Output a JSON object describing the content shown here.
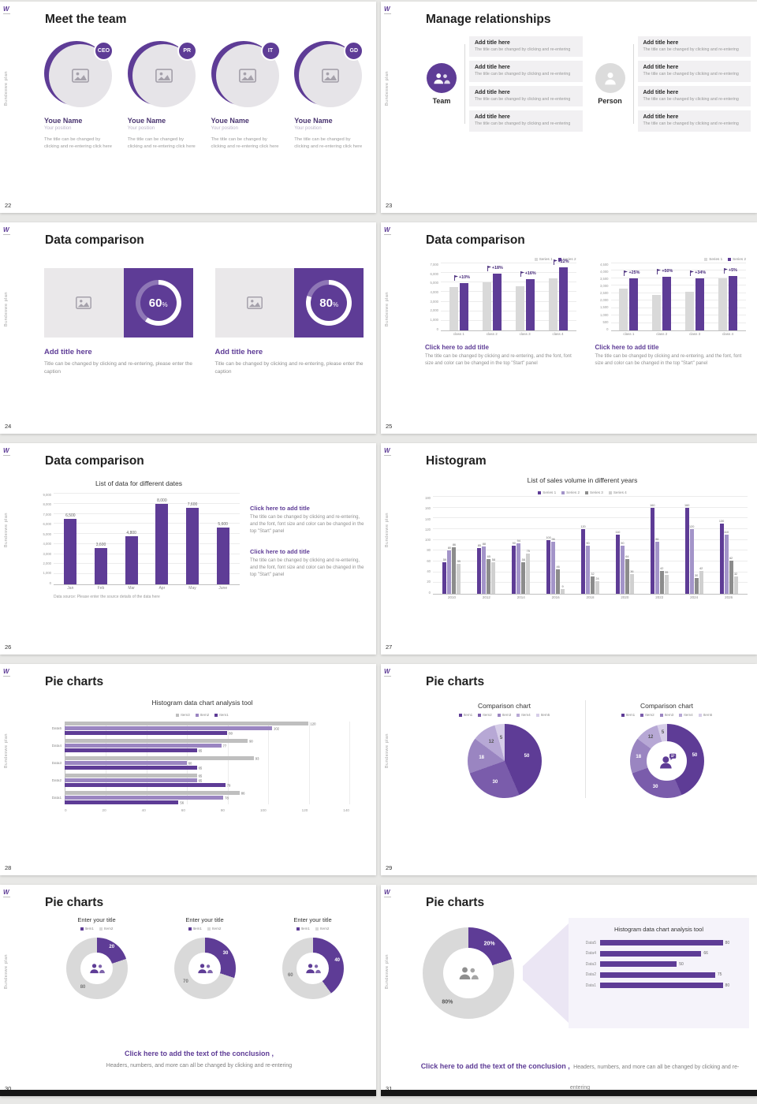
{
  "canvas": {
    "background": "#e8e8e6"
  },
  "colors": {
    "accent": "#5e3c96",
    "accent_dark": "#46297a",
    "purple_shades": [
      "#5e3c96",
      "#7a5cab",
      "#9a85c1",
      "#b7a8d5",
      "#d6cde8"
    ],
    "bar_gray": "#d9d9d9",
    "panel_gray": "#f1f0f2",
    "footer_bar": "#161616"
  },
  "brand": {
    "logo_text": "W",
    "sidebar_text": "Bundeswe plan"
  },
  "slides": [
    {
      "number": "22",
      "title": "Meet the team",
      "members": [
        {
          "badge": "CEO",
          "name": "Youe Name",
          "position": "Your position",
          "caption": "The title can be changed by clicking and re-entering click here"
        },
        {
          "badge": "PR",
          "name": "Youe Name",
          "position": "Your position",
          "caption": "The title can be changed by clicking and re-entering click here"
        },
        {
          "badge": "IT",
          "name": "Youe Name",
          "position": "Your position",
          "caption": "The title can be changed by clicking and re-entering click here"
        },
        {
          "badge": "GD",
          "name": "Youe Name",
          "position": "Your position",
          "caption": "The title can be changed by clicking and re-entering click here"
        }
      ]
    },
    {
      "number": "23",
      "title": "Manage relationships",
      "team_label": "Team",
      "person_label": "Person",
      "box_title": "Add title here",
      "box_caption": "The title can be changed by clicking and re-entering",
      "left_box_count": 4,
      "right_box_count": 4
    },
    {
      "number": "24",
      "title": "Data comparison",
      "cards": [
        {
          "percent": 60,
          "title": "Add title here",
          "caption": "Title can be changed by clicking and re-entering, please enter the caption"
        },
        {
          "percent": 80,
          "title": "Add title here",
          "caption": "Title can be changed by clicking and re-entering, please enter the caption"
        }
      ]
    },
    {
      "number": "25",
      "title": "Data comparison",
      "note_title": "Click here to add title",
      "note_text": "The title can be changed by clicking and re-entering, and the font, font size and color can be changed in the top \"Start\" panel",
      "charts": [
        {
          "type": "bar",
          "legend": [
            "Series 1",
            "Series 2"
          ],
          "categories": [
            "class 1",
            "class 2",
            "class 3",
            "class 4"
          ],
          "series": [
            {
              "name": "Series 1",
              "color": "#d9d9d9",
              "values": [
                4500,
                5000,
                4600,
                5400
              ]
            },
            {
              "name": "Series 2",
              "color": "#5e3c96",
              "values": [
                4950,
                5900,
                5350,
                6600
              ]
            }
          ],
          "growth_labels": [
            "+10%",
            "+18%",
            "+16%",
            "+22%"
          ],
          "ymax": 7000,
          "yticks": [
            "0",
            "1,000",
            "2,000",
            "3,000",
            "4,000",
            "5,000",
            "6,000",
            "7,000"
          ]
        },
        {
          "type": "bar",
          "legend": [
            "Series 1",
            "Series 2"
          ],
          "categories": [
            "class 1",
            "class 2",
            "class 3",
            "class 4"
          ],
          "series": [
            {
              "name": "Series 1",
              "color": "#d9d9d9",
              "values": [
                2800,
                2400,
                2600,
                3500
              ]
            },
            {
              "name": "Series 2",
              "color": "#5e3c96",
              "values": [
                3500,
                3600,
                3480,
                3680
              ]
            }
          ],
          "growth_labels": [
            "+25%",
            "+50%",
            "+34%",
            "+5%"
          ],
          "ymax": 4500,
          "yticks": [
            "0",
            "500",
            "1,000",
            "1,500",
            "2,000",
            "2,500",
            "3,000",
            "3,500",
            "4,000",
            "4,500"
          ]
        }
      ]
    },
    {
      "number": "26",
      "title": "Data comparison",
      "chart": {
        "type": "bar",
        "title": "List of data for different dates",
        "categories": [
          "Jan",
          "Feb",
          "Mar",
          "Apr",
          "May",
          "June"
        ],
        "values": [
          6500,
          3600,
          4800,
          8000,
          7600,
          5600
        ],
        "value_labels": [
          "6,500",
          "3,600",
          "4,800",
          "8,000",
          "7,600",
          "5,600"
        ],
        "bar_color": "#5e3c96",
        "ymax": 9000,
        "yticks": [
          "0",
          "1,000",
          "2,000",
          "3,000",
          "4,000",
          "5,000",
          "6,000",
          "7,000",
          "8,000",
          "9,000"
        ],
        "source": "Data source: Please enter the source details of the data here"
      },
      "notes": [
        {
          "title": "Click here to add title",
          "text": "The title can be changed by clicking and re-entering, and the font, font size and color can be changed in the top \"Start\" panel"
        },
        {
          "title": "Click here to add title",
          "text": "The title can be changed by clicking and re-entering, and the font, font size and color can be changed in the top \"Start\" panel"
        }
      ]
    },
    {
      "number": "27",
      "title": "Histogram",
      "chart": {
        "type": "bar",
        "title": "List of sales volume in different years",
        "legend": [
          "Series 1",
          "Series 2",
          "Series 3",
          "Series 4"
        ],
        "categories": [
          "2010",
          "2012",
          "2014",
          "2016",
          "2018",
          "2020",
          "2022",
          "2024",
          "2026"
        ],
        "series": [
          {
            "name": "Series 1",
            "color": "#5e3c96",
            "values": [
              59,
              85,
              90,
              100,
              120,
              110,
              160,
              160,
              130
            ]
          },
          {
            "name": "Series 2",
            "color": "#a394c9",
            "values": [
              80,
              88,
              94,
              96,
              90,
              90,
              96,
              120,
              110
            ]
          },
          {
            "name": "Series 3",
            "color": "#8c8c8c",
            "values": [
              86,
              65,
              58,
              46,
              32,
              64,
              42,
              30,
              62
            ]
          },
          {
            "name": "Series 4",
            "color": "#d0d0d0",
            "values": [
              55,
              58,
              75,
              9,
              24,
              36,
              35,
              42,
              32
            ]
          }
        ],
        "ymax": 180,
        "yticks": [
          "0",
          "20",
          "40",
          "60",
          "80",
          "100",
          "120",
          "140",
          "160",
          "180"
        ]
      }
    },
    {
      "number": "28",
      "title": "Pie charts",
      "chart": {
        "type": "bar-horizontal",
        "title": "Histogram data chart analysis tool",
        "legend": [
          "Item3",
          "Item2",
          "Item1"
        ],
        "legend_colors": [
          "#bfbfbf",
          "#9a85c1",
          "#5e3c96"
        ],
        "categories": [
          "Data5",
          "Data4",
          "Data3",
          "Data2",
          "Data1"
        ],
        "series": [
          {
            "name": "Item3",
            "color": "#bfbfbf",
            "values": [
              120,
              90,
              93,
              65,
              86
            ]
          },
          {
            "name": "Item2",
            "color": "#9a85c1",
            "values": [
              102,
              77,
              60,
              65,
              78
            ]
          },
          {
            "name": "Item1",
            "color": "#5e3c96",
            "values": [
              80,
              65,
              65,
              79,
              56
            ]
          }
        ],
        "xmax": 140,
        "xticks": [
          "0",
          "20",
          "40",
          "60",
          "80",
          "100",
          "120",
          "140"
        ]
      }
    },
    {
      "number": "29",
      "title": "Pie charts",
      "pie_colors": [
        "#5e3c96",
        "#7a5cab",
        "#9a85c1",
        "#b7a8d5",
        "#d6cde8"
      ],
      "panels": [
        {
          "title": "Comparison chart",
          "type": "pie",
          "legend": [
            "Item1",
            "Item2",
            "Item3",
            "Item4",
            "Item5"
          ],
          "values": [
            50,
            30,
            18,
            12,
            5
          ]
        },
        {
          "title": "Comparison chart",
          "type": "donut",
          "legend": [
            "Item1",
            "Item2",
            "Item3",
            "Item4",
            "Item5"
          ],
          "values": [
            50,
            30,
            18,
            12,
            5
          ]
        }
      ]
    },
    {
      "number": "30",
      "title": "Pie charts",
      "donut_colors": [
        "#5e3c96",
        "#d9d9d9"
      ],
      "donuts": [
        {
          "title": "Enter your title",
          "legend": [
            "Item1",
            "Item2"
          ],
          "values": [
            20,
            80
          ]
        },
        {
          "title": "Enter your title",
          "legend": [
            "Item1",
            "Item2"
          ],
          "values": [
            30,
            70
          ]
        },
        {
          "title": "Enter your title",
          "legend": [
            "Item1",
            "Item2"
          ],
          "values": [
            40,
            60
          ]
        }
      ],
      "conclusion_bold": "Click here to add the text of the conclusion ,",
      "conclusion_text": "Headers, numbers, and more can all be changed by clicking and re-entering"
    },
    {
      "number": "31",
      "title": "Pie charts",
      "donut": {
        "values": [
          20,
          80
        ],
        "labels": [
          "20%",
          "80%"
        ],
        "colors": [
          "#5e3c96",
          "#d9d9d9"
        ]
      },
      "panel": {
        "title": "Histogram data chart analysis tool",
        "categories": [
          "Data5",
          "Data4",
          "Data3",
          "Data2",
          "Data1"
        ],
        "values": [
          80,
          66,
          50,
          75,
          80
        ],
        "xmax": 90
      },
      "conclusion_bold": "Click here to add the text of the conclusion ,",
      "conclusion_text": "Headers, numbers, and more can all be changed by clicking and re-entering"
    }
  ]
}
